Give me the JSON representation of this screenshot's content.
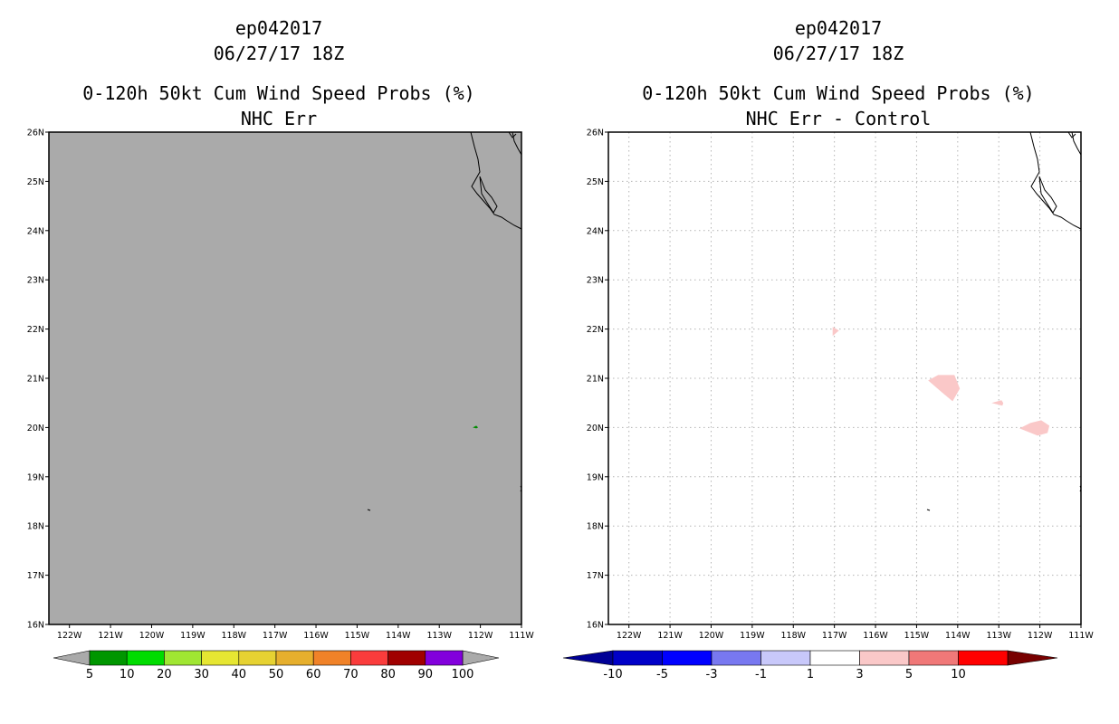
{
  "chart_data": [
    {
      "type": "heatmap",
      "title_lines": [
        "ep042017",
        "06/27/17 18Z",
        "0-120h 50kt Cum Wind Speed Probs (%)",
        "NHC Err"
      ],
      "lon_ticks": [
        "122W",
        "121W",
        "120W",
        "119W",
        "118W",
        "117W",
        "116W",
        "115W",
        "114W",
        "113W",
        "112W",
        "111W"
      ],
      "lat_ticks": [
        "26N",
        "25N",
        "24N",
        "23N",
        "22N",
        "21N",
        "20N",
        "19N",
        "18N",
        "17N",
        "16N"
      ],
      "lon_range": [
        -122.5,
        -111
      ],
      "lat_range": [
        16,
        26
      ],
      "grid": false,
      "background_color": "#aaaaaa",
      "features": [
        {
          "name": "probability-5-10",
          "lon": -112.1,
          "lat": 20.0,
          "value_range": [
            5,
            10
          ],
          "color": "#008c00"
        }
      ],
      "colorbar": {
        "labels": [
          "5",
          "10",
          "20",
          "30",
          "40",
          "50",
          "60",
          "70",
          "80",
          "90",
          "100"
        ],
        "colors": [
          "#009600",
          "#00dc00",
          "#a0e632",
          "#e6e632",
          "#e6d232",
          "#e6af2d",
          "#f08228",
          "#fa3c3c",
          "#a00000",
          "#8200dc"
        ],
        "under_color": "#aaaaaa",
        "over_color": "#aaaaaa"
      }
    },
    {
      "type": "heatmap",
      "title_lines": [
        "ep042017",
        "06/27/17 18Z",
        "0-120h 50kt Cum Wind Speed Probs (%)",
        "NHC Err - Control"
      ],
      "lon_ticks": [
        "122W",
        "121W",
        "120W",
        "119W",
        "118W",
        "117W",
        "116W",
        "115W",
        "114W",
        "113W",
        "112W",
        "111W"
      ],
      "lat_ticks": [
        "26N",
        "25N",
        "24N",
        "23N",
        "22N",
        "21N",
        "20N",
        "19N",
        "18N",
        "17N",
        "16N"
      ],
      "lon_range": [
        -122.5,
        -111
      ],
      "lat_range": [
        16,
        26
      ],
      "grid": true,
      "background_color": "#ffffff",
      "features": [
        {
          "name": "difference-1-3-near-22n-117w",
          "lon": -117.0,
          "lat": 21.95,
          "value_range": [
            1,
            3
          ],
          "color": "#fac8c8"
        },
        {
          "name": "difference-1-3-near-21n-114w",
          "lon": -114.3,
          "lat": 20.9,
          "value_range": [
            1,
            3
          ],
          "color": "#fac8c8"
        },
        {
          "name": "difference-1-3-near-20-5n-113w",
          "lon": -113.0,
          "lat": 20.5,
          "value_range": [
            1,
            3
          ],
          "color": "#fac8c8"
        },
        {
          "name": "difference-1-3-near-20n-112w",
          "lon": -112.1,
          "lat": 20.0,
          "value_range": [
            1,
            3
          ],
          "color": "#fac8c8"
        }
      ],
      "colorbar": {
        "labels": [
          "-10",
          "-5",
          "-3",
          "-1",
          "1",
          "3",
          "5",
          "10"
        ],
        "colors": [
          "#0000c8",
          "#0000ff",
          "#7878f0",
          "#c8c8fa",
          "#ffffff",
          "#fac8c8",
          "#f07878",
          "#ff0000"
        ],
        "under_color": "#000096",
        "over_color": "#780000"
      }
    }
  ]
}
